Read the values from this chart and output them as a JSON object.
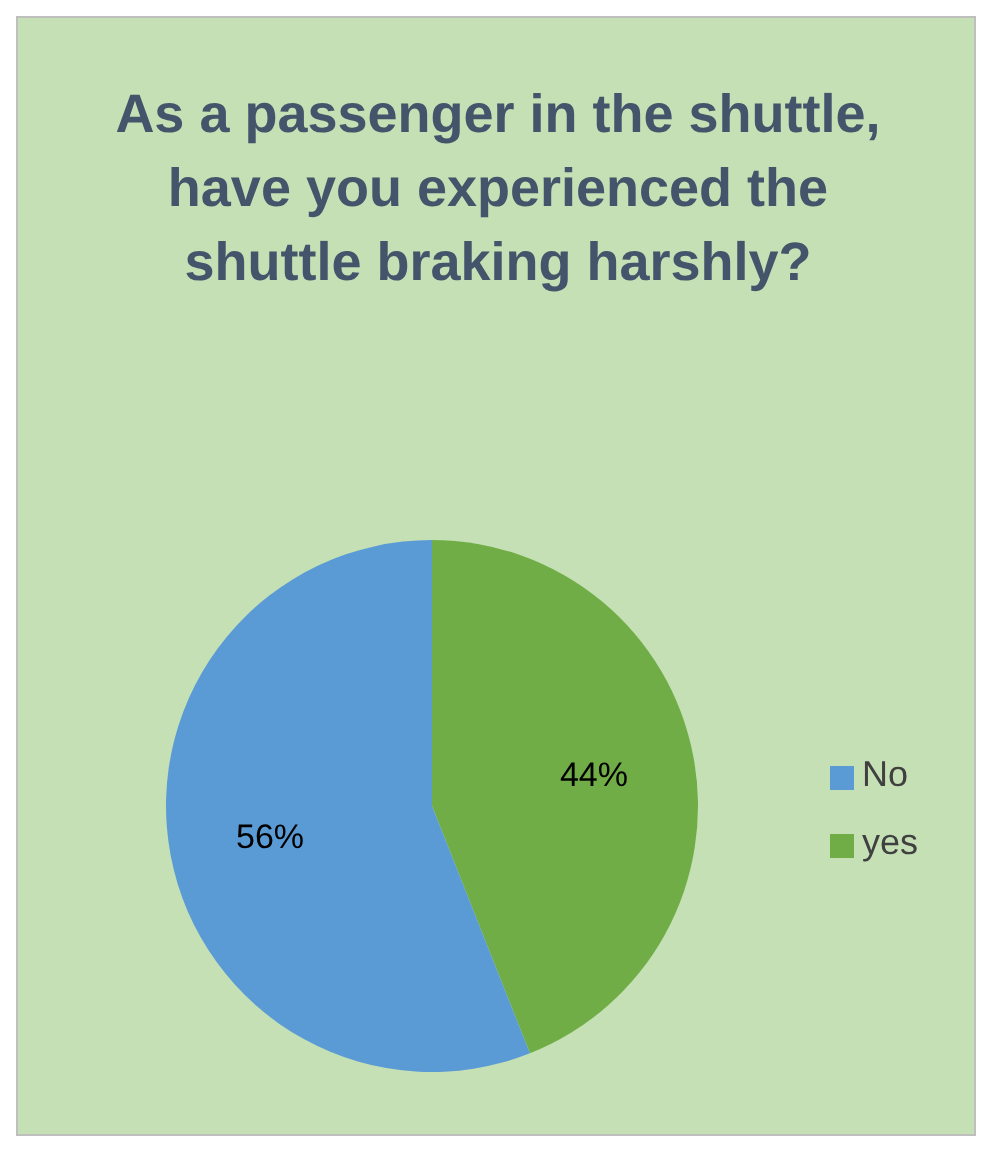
{
  "chart_data": {
    "type": "pie",
    "title": "As a passenger in the shuttle, have you experienced the shuttle braking harshly?",
    "categories": [
      "yes",
      "No"
    ],
    "values": [
      44,
      56
    ],
    "colors": [
      "#70ad47",
      "#5b9bd5"
    ],
    "value_labels": [
      "44%",
      "56%"
    ],
    "legend": "right"
  }
}
